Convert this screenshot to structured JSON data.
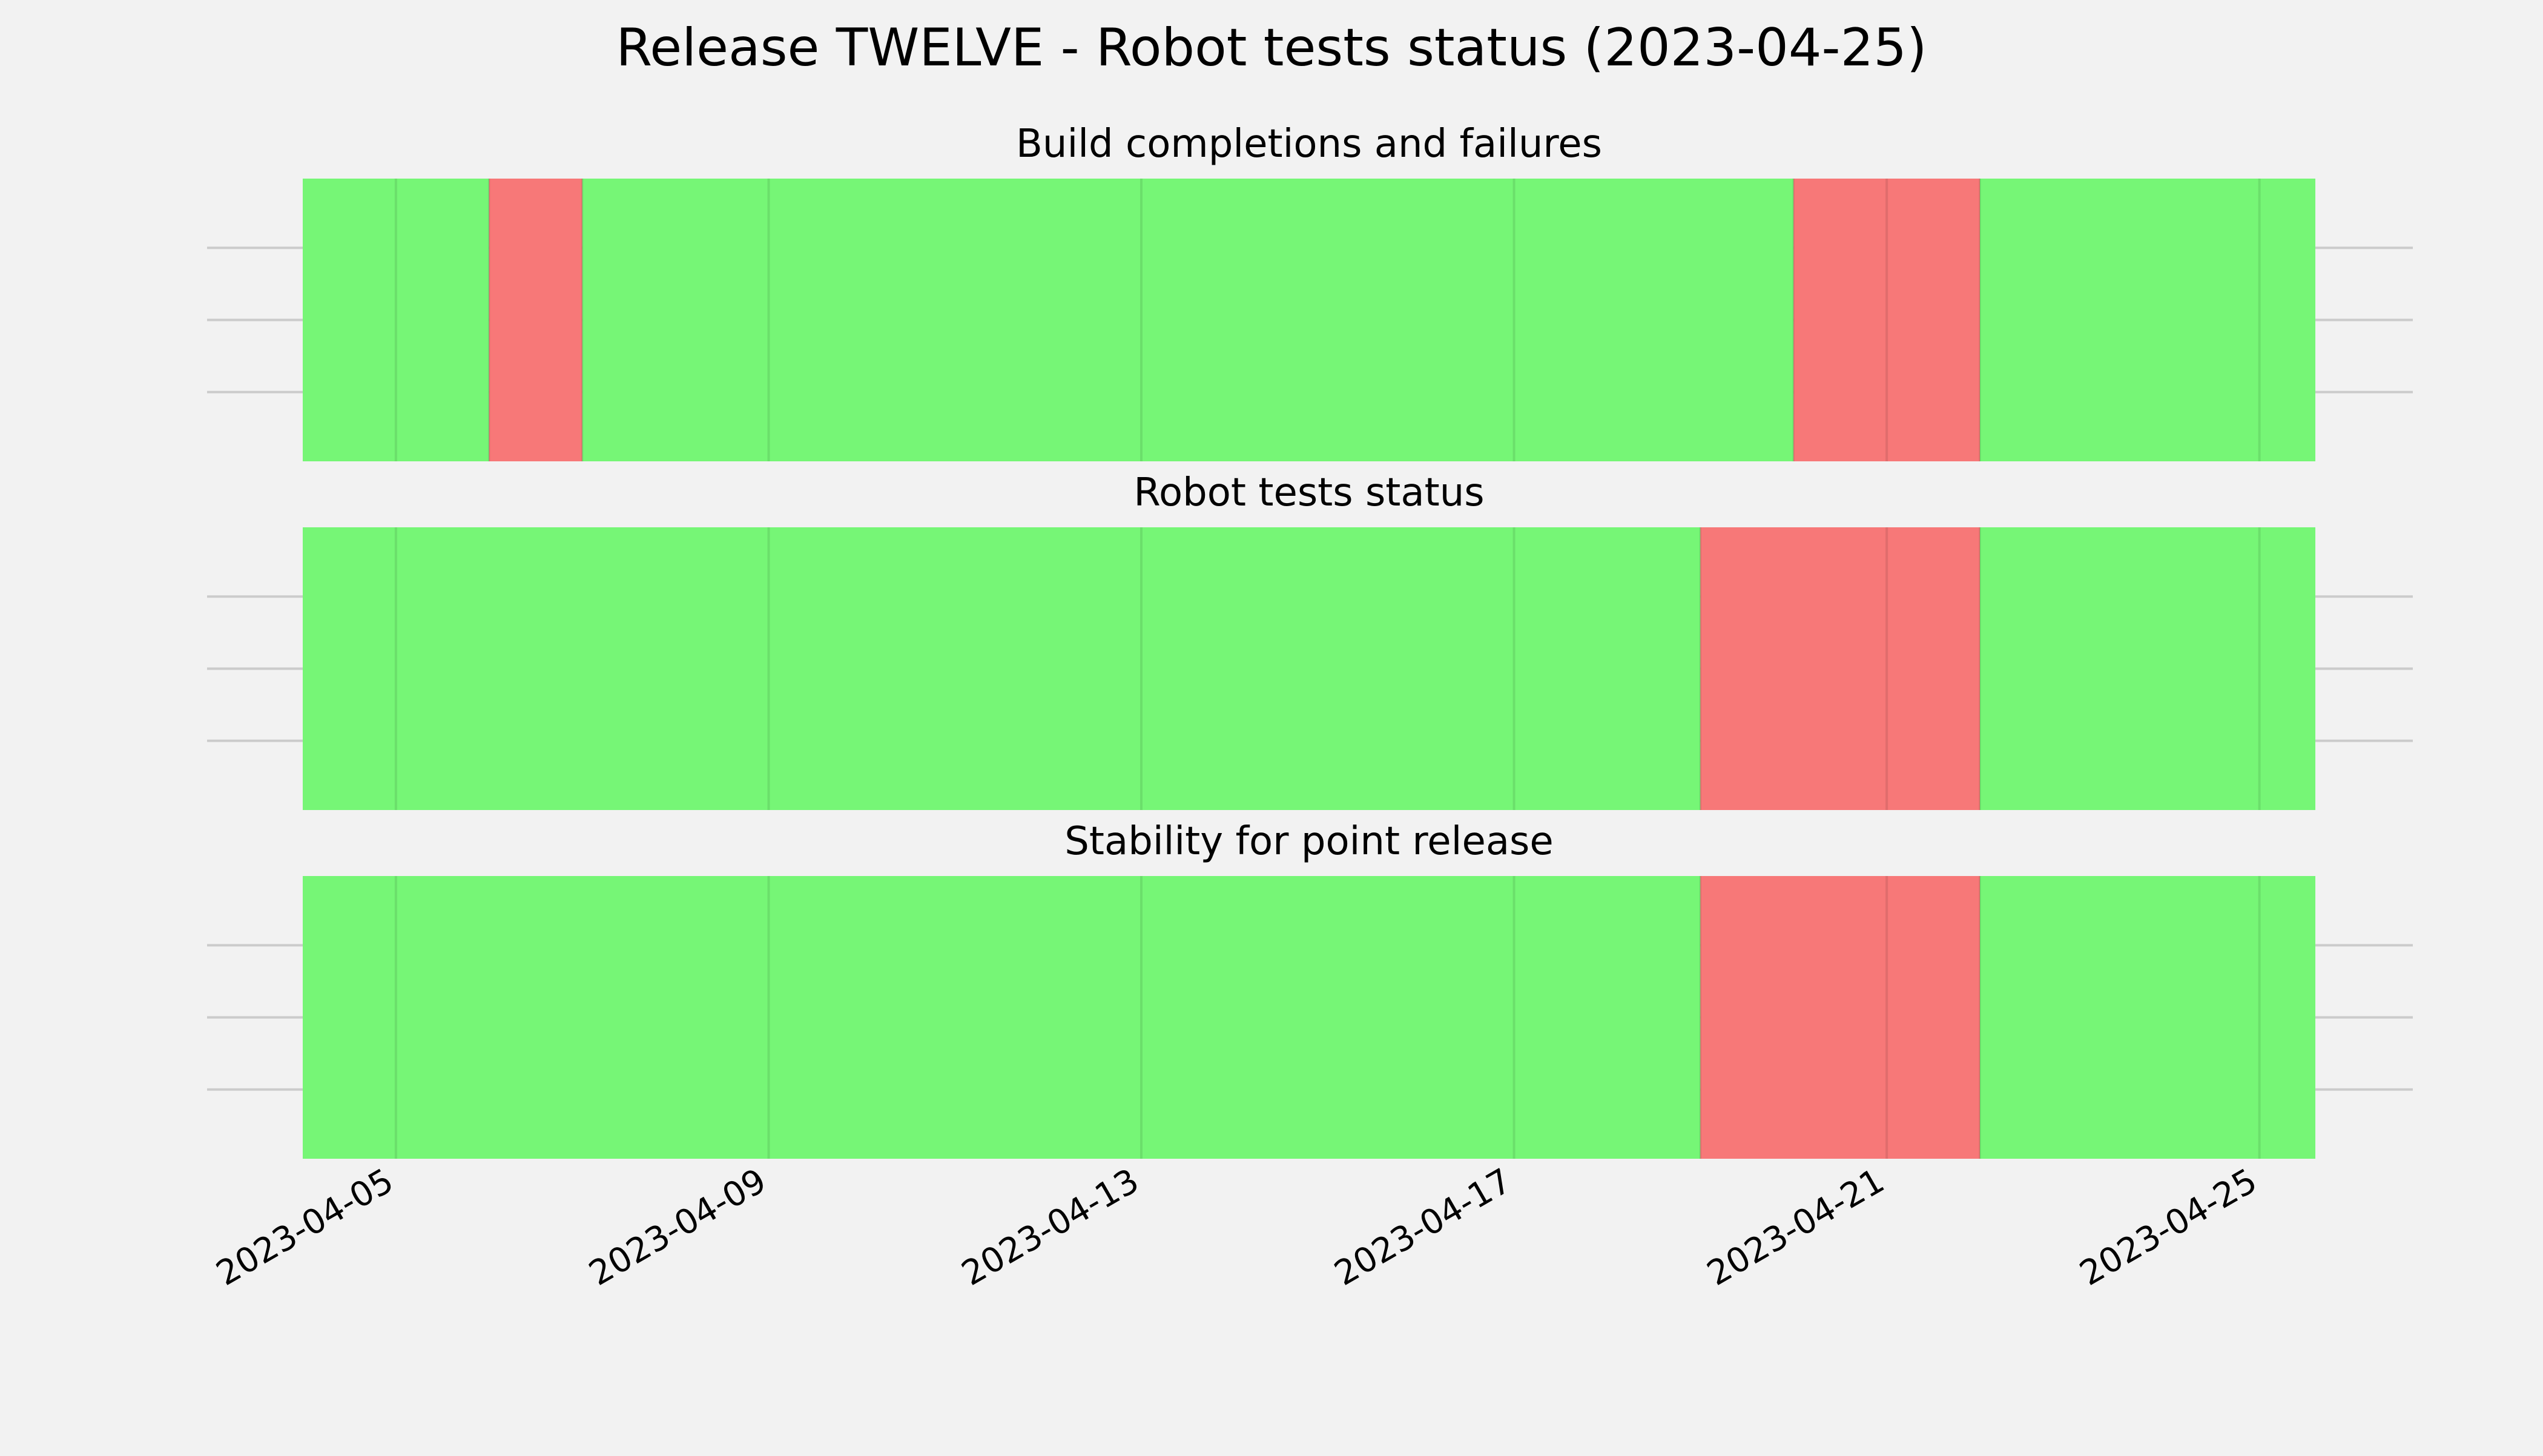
{
  "title": "Release TWELVE - Robot tests status (2023-04-25)",
  "colors": {
    "background": "#f2f2f2",
    "pass": "#76f676",
    "fail": "#f77878",
    "grid": "#cbcbcb"
  },
  "chart_data": [
    {
      "type": "timeline",
      "title": "Build completions and failures",
      "xlim": [
        "2023-04-04",
        "2023-04-25.6"
      ],
      "x_ticks": [
        "2023-04-05",
        "2023-04-09",
        "2023-04-13",
        "2023-04-17",
        "2023-04-21",
        "2023-04-25"
      ],
      "segments": [
        {
          "start": "2023-04-04",
          "end": "2023-04-06",
          "status": "pass"
        },
        {
          "start": "2023-04-06",
          "end": "2023-04-07",
          "status": "fail"
        },
        {
          "start": "2023-04-07",
          "end": "2023-04-20",
          "status": "pass"
        },
        {
          "start": "2023-04-20",
          "end": "2023-04-22",
          "status": "fail"
        },
        {
          "start": "2023-04-22",
          "end": "2023-04-25.6",
          "status": "pass"
        }
      ]
    },
    {
      "type": "timeline",
      "title": "Robot tests status",
      "xlim": [
        "2023-04-04",
        "2023-04-25.6"
      ],
      "x_ticks": [
        "2023-04-05",
        "2023-04-09",
        "2023-04-13",
        "2023-04-17",
        "2023-04-21",
        "2023-04-25"
      ],
      "segments": [
        {
          "start": "2023-04-04",
          "end": "2023-04-19",
          "status": "pass"
        },
        {
          "start": "2023-04-19",
          "end": "2023-04-22",
          "status": "fail"
        },
        {
          "start": "2023-04-22",
          "end": "2023-04-25.6",
          "status": "pass"
        }
      ]
    },
    {
      "type": "timeline",
      "title": "Stability for point release",
      "xlim": [
        "2023-04-04",
        "2023-04-25.6"
      ],
      "x_ticks": [
        "2023-04-05",
        "2023-04-09",
        "2023-04-13",
        "2023-04-17",
        "2023-04-21",
        "2023-04-25"
      ],
      "segments": [
        {
          "start": "2023-04-04",
          "end": "2023-04-19",
          "status": "pass"
        },
        {
          "start": "2023-04-19",
          "end": "2023-04-22",
          "status": "fail"
        },
        {
          "start": "2023-04-22",
          "end": "2023-04-25.6",
          "status": "pass"
        }
      ]
    }
  ]
}
